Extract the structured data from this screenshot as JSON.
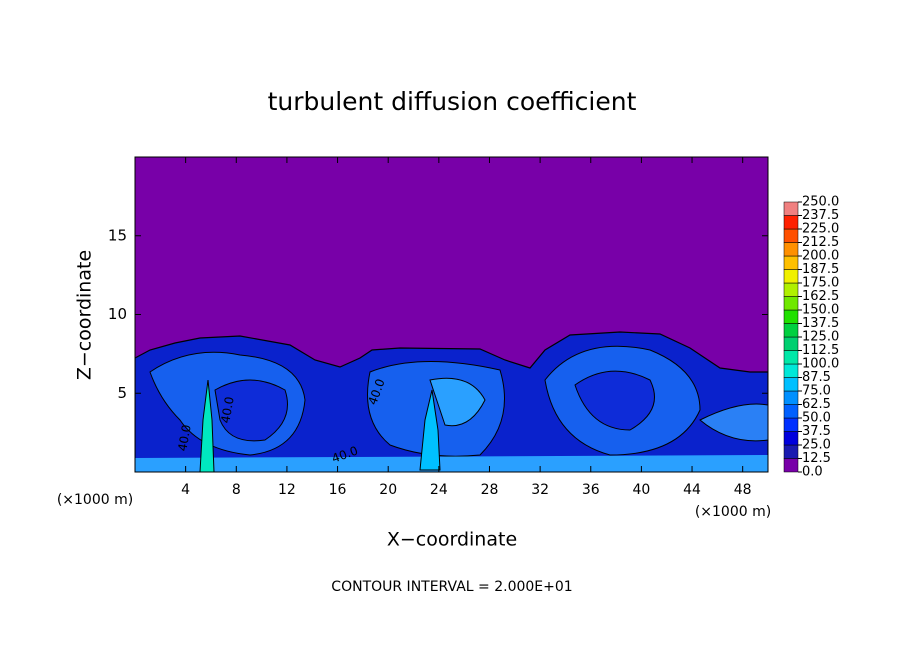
{
  "chart_data": {
    "type": "contour",
    "title": "turbulent diffusion coefficient",
    "x_label": "X−coordinate",
    "y_label": "Z−coordinate",
    "x_unit_left": "(×1000 m)",
    "x_unit_right": "(×1000 m)",
    "footnote": "CONTOUR INTERVAL = 2.000E+01",
    "contour_labels": [
      "40.0",
      "40.0",
      "40.0",
      "40.0"
    ],
    "xlim": [
      0,
      50
    ],
    "xticks": [
      4,
      8,
      12,
      16,
      20,
      24,
      28,
      32,
      36,
      40,
      44,
      48
    ],
    "ylim": [
      0,
      20
    ],
    "yticks": [
      5,
      10,
      15
    ],
    "colorbar": {
      "ticks": [
        {
          "value": 0,
          "label": "0.0"
        },
        {
          "value": 12.5,
          "label": "12.5"
        },
        {
          "value": 25,
          "label": "25.0"
        },
        {
          "value": 37.5,
          "label": "37.5"
        },
        {
          "value": 50,
          "label": "50.0"
        },
        {
          "value": 62.5,
          "label": "62.5"
        },
        {
          "value": 75,
          "label": "75.0"
        },
        {
          "value": 87.5,
          "label": "87.5"
        },
        {
          "value": 100,
          "label": "100.0"
        },
        {
          "value": 112.5,
          "label": "112.5"
        },
        {
          "value": 125,
          "label": "125.0"
        },
        {
          "value": 137.5,
          "label": "137.5"
        },
        {
          "value": 150,
          "label": "150.0"
        },
        {
          "value": 162.5,
          "label": "162.5"
        },
        {
          "value": 175,
          "label": "175.0"
        },
        {
          "value": 187.5,
          "label": "187.5"
        },
        {
          "value": 200,
          "label": "200.0"
        },
        {
          "value": 212.5,
          "label": "212.5"
        },
        {
          "value": 225,
          "label": "225.0"
        },
        {
          "value": 237.5,
          "label": "237.5"
        },
        {
          "value": 250,
          "label": "250.0"
        }
      ],
      "colors": [
        "#7800a8",
        "#1a1ab0",
        "#0000dd",
        "#0030ff",
        "#0060ff",
        "#0090ff",
        "#00c0ff",
        "#00e8d8",
        "#00e8a8",
        "#00d070",
        "#00d040",
        "#20e000",
        "#70e800",
        "#b0f000",
        "#f0f000",
        "#ffc000",
        "#ff9000",
        "#ff5000",
        "#ff2000",
        "#f08080"
      ]
    }
  }
}
